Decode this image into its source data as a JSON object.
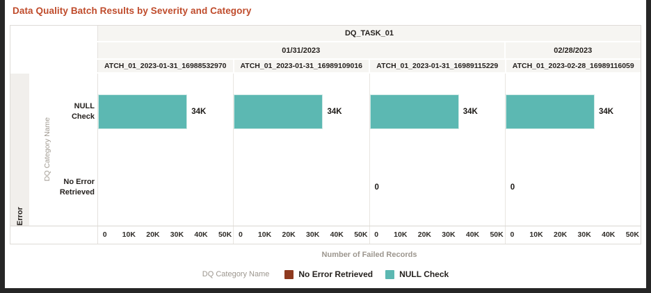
{
  "title": "Data Quality Batch Results by Severity and Category",
  "header": {
    "task_label": "DQ_TASK_01",
    "dates": [
      {
        "label": "01/31/2023",
        "span": 3
      },
      {
        "label": "02/28/2023",
        "span": 1
      }
    ]
  },
  "severity_label": "Error",
  "category_axis_label": "DQ Category Name",
  "categories": {
    "null_check": "NULL Check",
    "no_error": "No Error Retrieved"
  },
  "panels": [
    {
      "batch_label": "ATCH_01_2023-01-31_16988532970",
      "null_check_label": "34K",
      "null_check_pct": 66,
      "no_error_label": ""
    },
    {
      "batch_label": "ATCH_01_2023-01-31_16989109016",
      "null_check_label": "34K",
      "null_check_pct": 66,
      "no_error_label": ""
    },
    {
      "batch_label": "ATCH_01_2023-01-31_16989115229",
      "null_check_label": "34K",
      "null_check_pct": 66,
      "no_error_label": "0"
    },
    {
      "batch_label": "ATCH_01_2023-02-28_16989116059",
      "null_check_label": "34K",
      "null_check_pct": 66,
      "no_error_label": "0"
    }
  ],
  "x_axis": {
    "ticks": [
      "0",
      "10K",
      "20K",
      "30K",
      "40K",
      "50K"
    ],
    "label": "Number of Failed Records"
  },
  "legend": {
    "title": "DQ Category Name",
    "items": [
      {
        "label": "No Error Retrieved",
        "color": "#8e3a1f"
      },
      {
        "label": "NULL Check",
        "color": "#5cb8b2"
      }
    ]
  },
  "colors": {
    "title_text": "#bf4b2b",
    "bar_teal": "#5cb8b2",
    "legend_maroon": "#8e3a1f",
    "header_bg": "#f6f5f2",
    "severity_strip_bg": "#f1efec",
    "frame_dark": "#262626"
  },
  "chart_data": {
    "type": "bar",
    "orientation": "horizontal",
    "title": "Data Quality Batch Results by Severity and Category",
    "trellis_columns": {
      "task": "DQ_TASK_01",
      "dates": [
        "01/31/2023",
        "01/31/2023",
        "01/31/2023",
        "02/28/2023"
      ],
      "batches": [
        "ATCH_01_2023-01-31_16988532970",
        "ATCH_01_2023-01-31_16989109016",
        "ATCH_01_2023-01-31_16989115229",
        "ATCH_01_2023-02-28_16989116059"
      ]
    },
    "row_group": "Error",
    "categories": [
      "NULL Check",
      "No Error Retrieved"
    ],
    "series": [
      {
        "name": "NULL Check",
        "color": "#5cb8b2",
        "values": [
          34000,
          34000,
          34000,
          34000
        ],
        "data_labels": [
          "34K",
          "34K",
          "34K",
          "34K"
        ]
      },
      {
        "name": "No Error Retrieved",
        "color": "#8e3a1f",
        "values": [
          null,
          null,
          0,
          0
        ],
        "data_labels": [
          "",
          "",
          "0",
          "0"
        ]
      }
    ],
    "xlabel": "Number of Failed Records",
    "ylabel": "DQ Category Name",
    "xlim": [
      0,
      50000
    ],
    "xticks": [
      "0",
      "10K",
      "20K",
      "30K",
      "40K",
      "50K"
    ],
    "grid": false,
    "legend_position": "bottom"
  }
}
